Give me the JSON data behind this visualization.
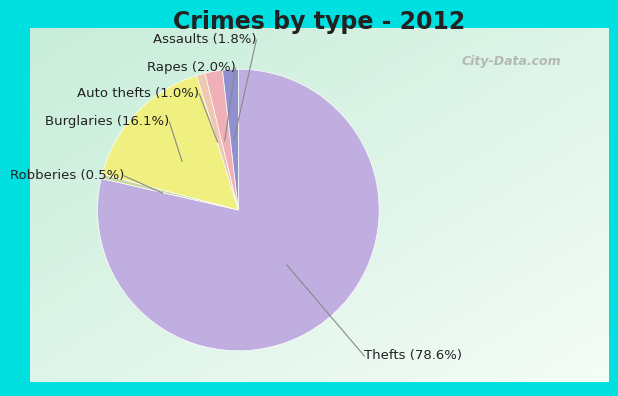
{
  "title": "Crimes by type - 2012",
  "labels": [
    "Thefts",
    "Robberies",
    "Burglaries",
    "Auto thefts",
    "Rapes",
    "Assaults"
  ],
  "values": [
    78.6,
    0.5,
    16.1,
    1.0,
    2.0,
    1.8
  ],
  "colors": [
    "#c0aee0",
    "#c8d8a0",
    "#f0f080",
    "#f0c8b0",
    "#f0b0b8",
    "#9090d0"
  ],
  "label_texts": [
    "Thefts (78.6%)",
    "Robberies (0.5%)",
    "Burglaries (16.1%)",
    "Auto thefts (1.0%)",
    "Rapes (2.0%)",
    "Assaults (1.8%)"
  ],
  "bg_color": "#00e0e0",
  "title_fontsize": 17,
  "label_fontsize": 9.5,
  "watermark": "City-Data.com"
}
